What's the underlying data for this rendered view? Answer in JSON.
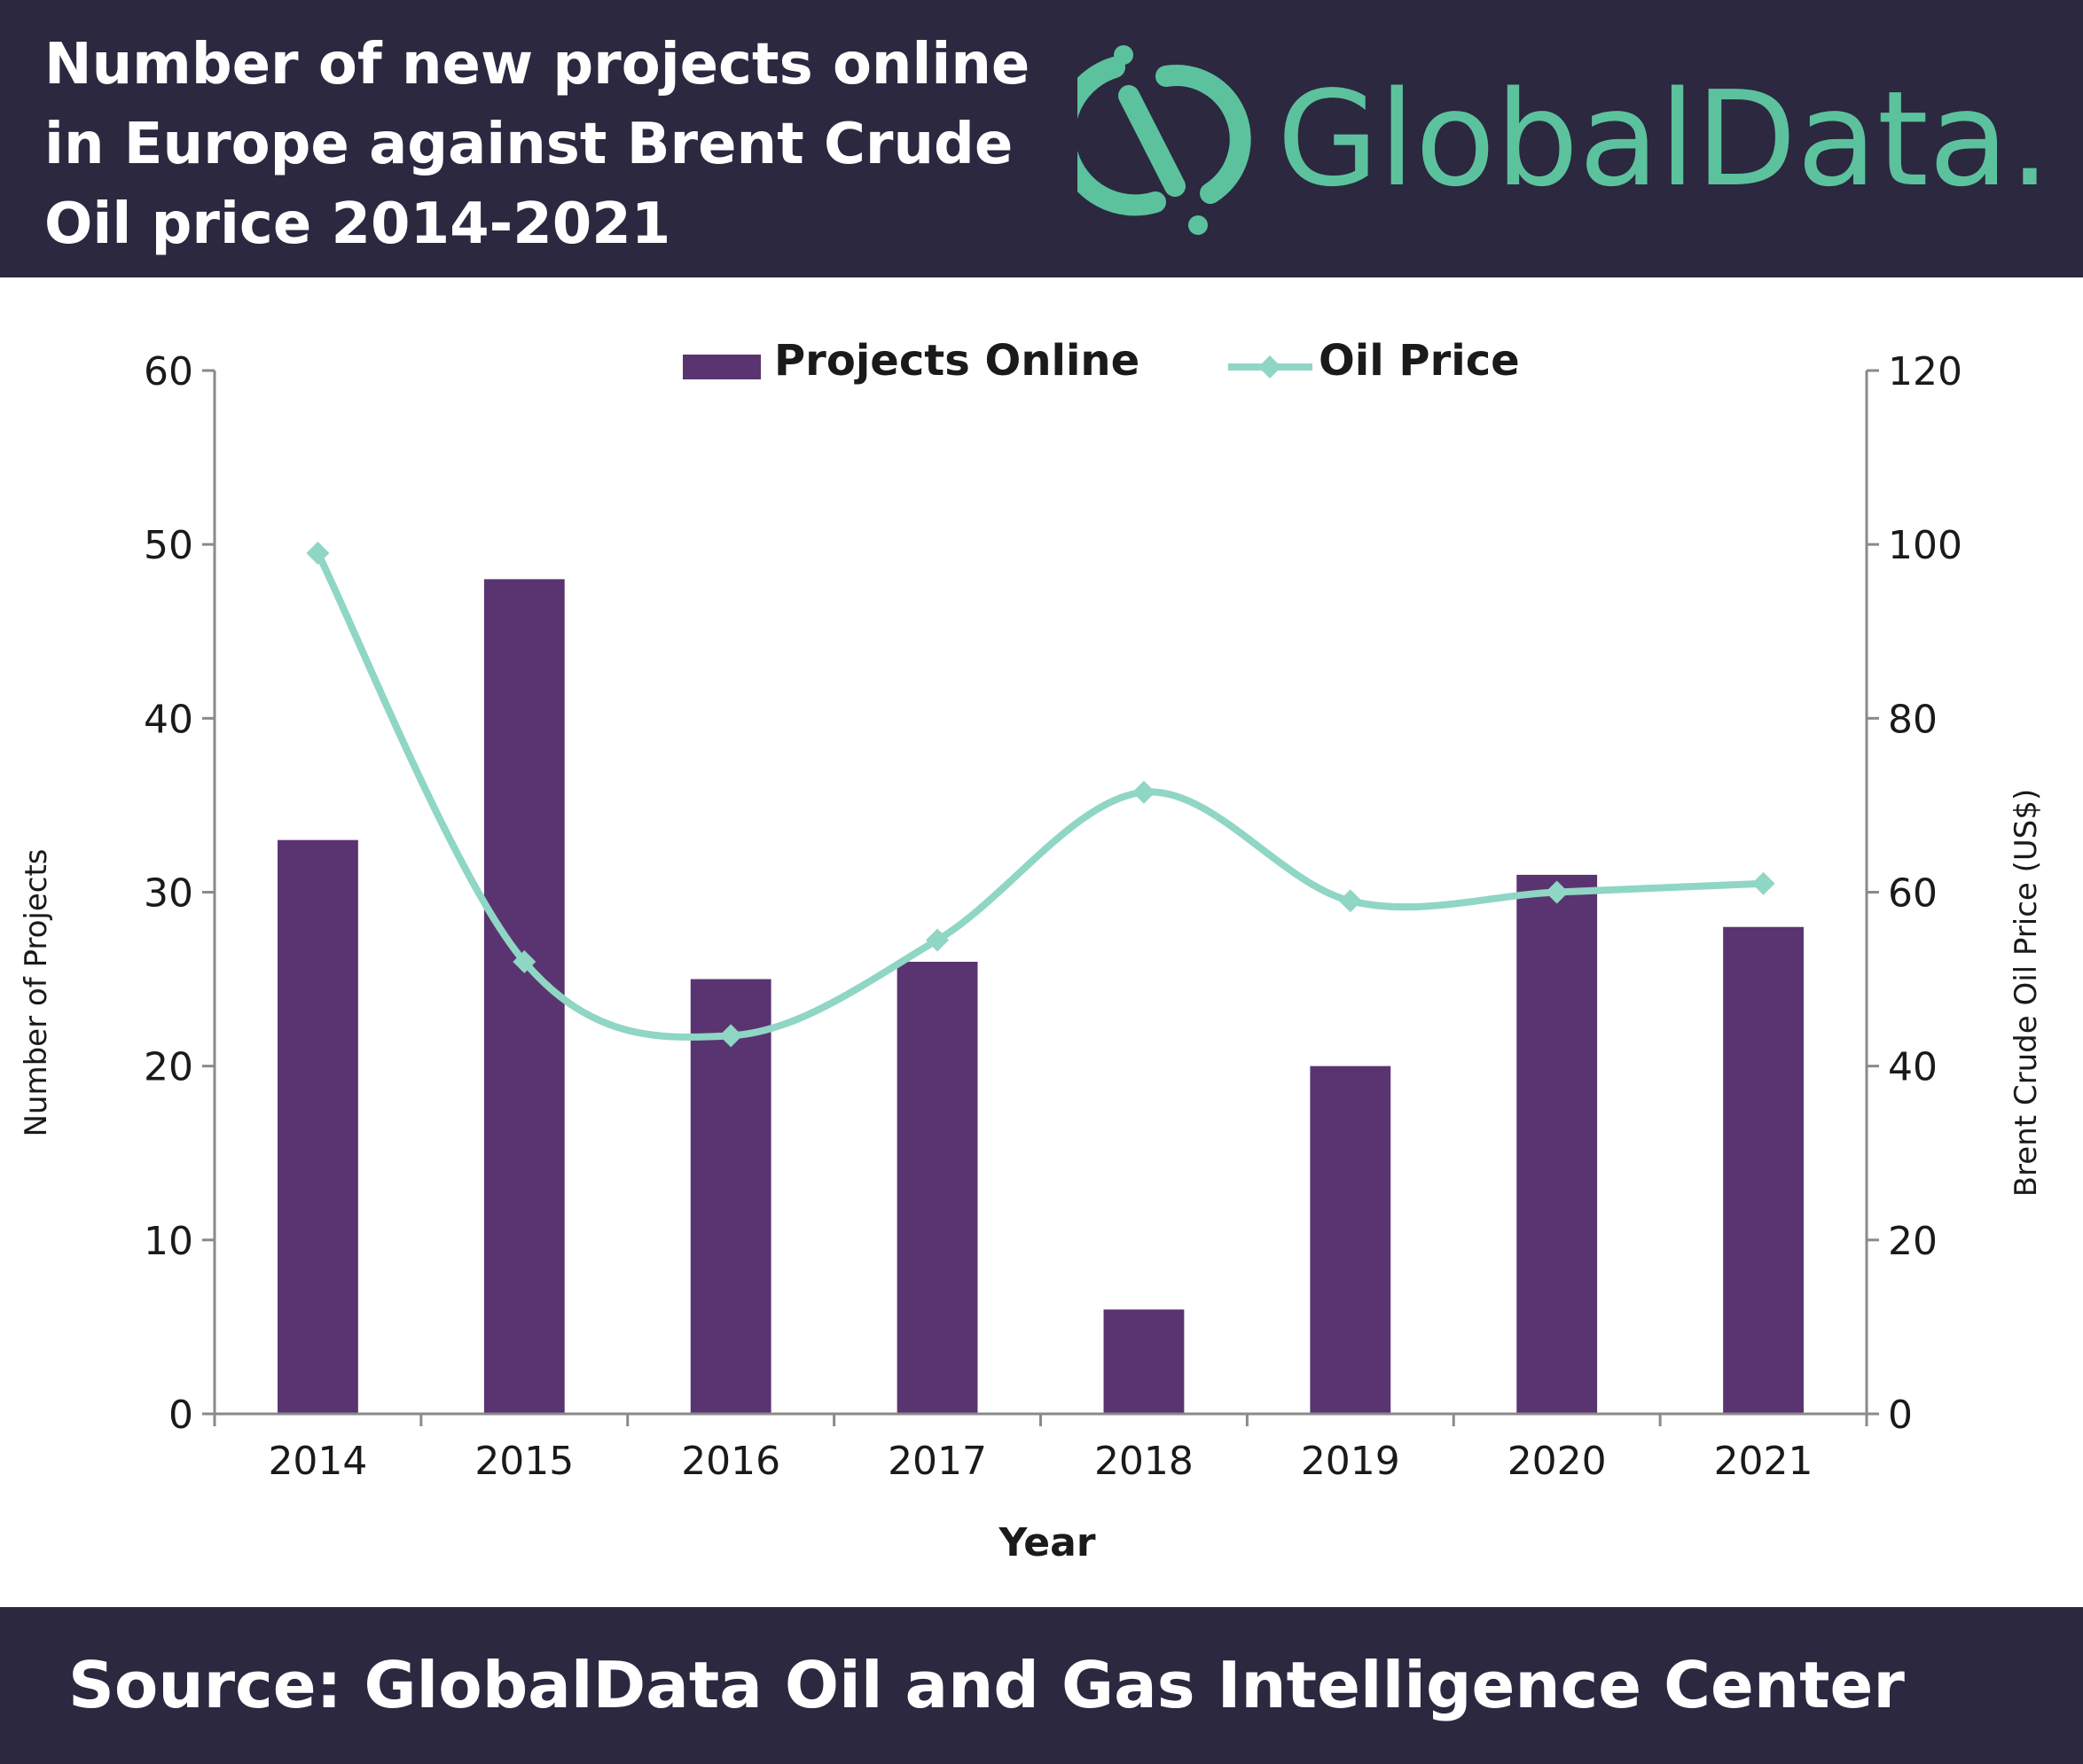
{
  "header": {
    "title_lines": [
      "Number of new projects online",
      "in Europe against Brent Crude",
      "Oil price 2014-2021"
    ],
    "logo_text": "GlobalData."
  },
  "footer": {
    "source": "Source: GlobalData Oil and Gas Intelligence Center"
  },
  "colors": {
    "bar": "#5a3470",
    "line": "#8fd6c4",
    "brand": "#5cc29d",
    "dark": "#2b2840"
  },
  "chart_data": {
    "type": "bar",
    "categories": [
      "2014",
      "2015",
      "2016",
      "2017",
      "2018",
      "2019",
      "2020",
      "2021"
    ],
    "series": [
      {
        "name": "Projects Online",
        "type": "bar",
        "axis": "left",
        "values": [
          33,
          48,
          25,
          26,
          6,
          20,
          31,
          28
        ]
      },
      {
        "name": "Oil Price",
        "type": "line",
        "axis": "right",
        "values": [
          99,
          52,
          43.5,
          54.5,
          71.5,
          59,
          60,
          61
        ]
      }
    ],
    "xlabel": "Year",
    "ylabel": "Number of Projects",
    "y2label": "Brent Crude Oil Price (US$)",
    "ylim": [
      0,
      60
    ],
    "y2lim": [
      0,
      120
    ],
    "yticks": [
      0,
      10,
      20,
      30,
      40,
      50,
      60
    ],
    "y2ticks": [
      0,
      20,
      40,
      60,
      80,
      100,
      120
    ],
    "legend": "top",
    "grid": false
  }
}
